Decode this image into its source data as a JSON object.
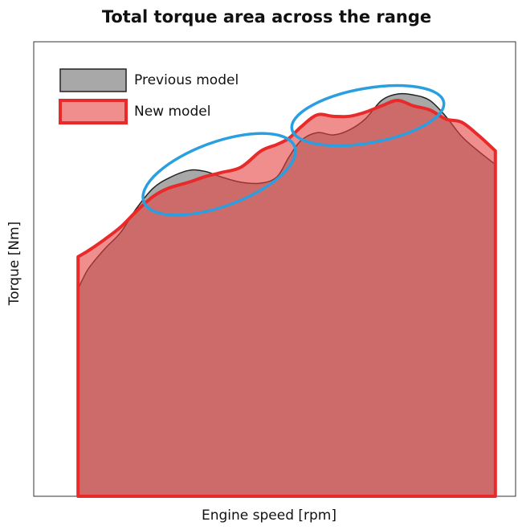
{
  "chart_data": {
    "type": "area",
    "title": "Total torque area across the range",
    "x_label": "Engine speed [rpm]",
    "y_label": "Torque [Nm]",
    "xlim": [
      0,
      100
    ],
    "ylim": [
      0,
      100
    ],
    "legend": "upper left",
    "x": [
      9.2,
      11.3,
      14.7,
      18.0,
      21.3,
      24.7,
      28.0,
      32.2,
      35.5,
      38.8,
      43.0,
      47.2,
      50.5,
      53.0,
      55.5,
      58.8,
      62.2,
      65.5,
      68.8,
      72.2,
      75.5,
      78.8,
      82.2,
      85.5,
      88.8,
      92.2,
      95.8
    ],
    "series": [
      {
        "name": "Previous model",
        "color": "#a8a8a8",
        "line_color": "#222222",
        "values": [
          45.6,
          50.0,
          54.4,
          58.0,
          63.3,
          67.7,
          70.0,
          71.7,
          71.5,
          70.3,
          69.1,
          68.9,
          70.3,
          74.7,
          78.3,
          80.0,
          79.5,
          80.6,
          83.0,
          87.1,
          88.5,
          88.3,
          87.1,
          83.6,
          79.2,
          76.0,
          73.0
        ]
      },
      {
        "name": "New model",
        "color": "#e64242",
        "line_color": "#e82a2a",
        "values": [
          52.7,
          54.0,
          56.5,
          59.2,
          62.7,
          65.9,
          67.8,
          69.1,
          70.3,
          71.2,
          72.4,
          76.0,
          77.4,
          78.8,
          81.3,
          83.9,
          83.6,
          83.6,
          84.5,
          85.9,
          87.1,
          85.9,
          85.0,
          83.0,
          82.3,
          79.5,
          76.0
        ]
      }
    ]
  }
}
